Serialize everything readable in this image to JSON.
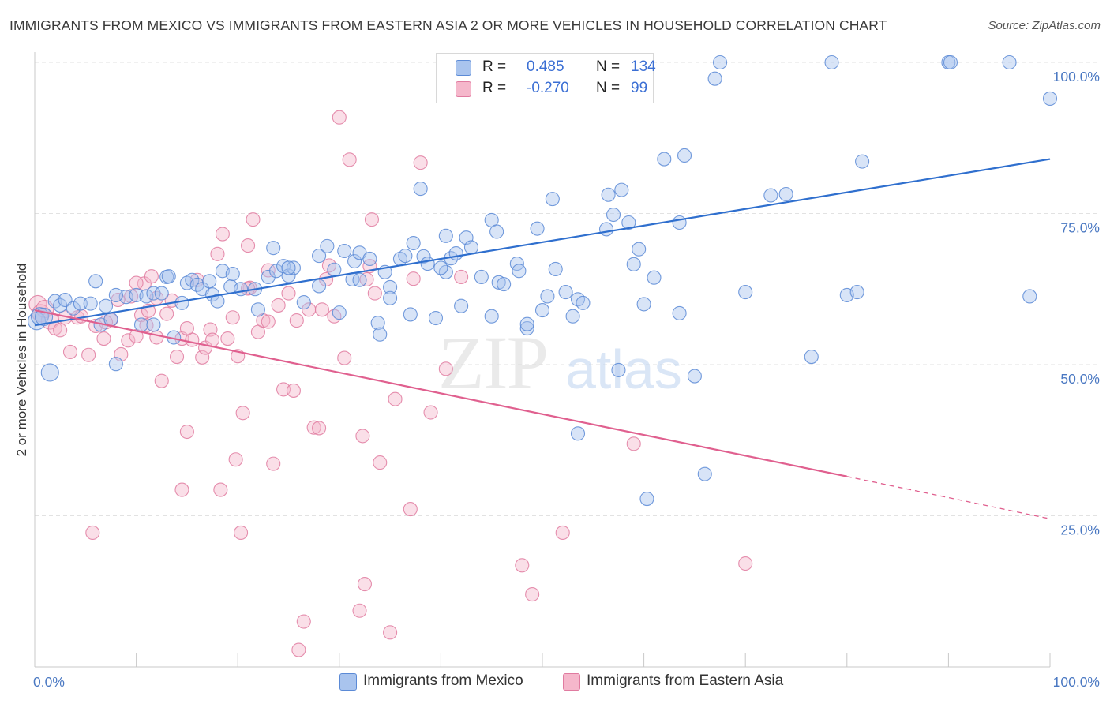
{
  "title": "IMMIGRANTS FROM MEXICO VS IMMIGRANTS FROM EASTERN ASIA 2 OR MORE VEHICLES IN HOUSEHOLD CORRELATION CHART",
  "source": "Source: ZipAtlas.com",
  "watermark": {
    "zip": "ZIP",
    "atlas": "atlas"
  },
  "legend": {
    "r_label": "R =",
    "n_label": "N =",
    "rows": [
      {
        "r": "0.485",
        "n": "134"
      },
      {
        "r": "-0.270",
        "n": "99"
      }
    ]
  },
  "colors": {
    "mexico_fill": "#a9c4ee",
    "mexico_stroke": "#5b8ad6",
    "mexico_line": "#2f6fce",
    "asia_fill": "#f5b7cb",
    "asia_stroke": "#e07ba0",
    "asia_line": "#e0608f",
    "tick": "#4a78c2",
    "grid": "#e2e2e2"
  },
  "chart_data": {
    "type": "scatter",
    "title": "IMMIGRANTS FROM MEXICO VS IMMIGRANTS FROM EASTERN ASIA 2 OR MORE VEHICLES IN HOUSEHOLD CORRELATION CHART",
    "xlabel": "",
    "ylabel": "2 or more Vehicles in Household",
    "xlim": [
      0,
      100
    ],
    "ylim": [
      0,
      100
    ],
    "x_tick_labels": [
      "0.0%",
      "100.0%"
    ],
    "y_tick_labels": [
      "25.0%",
      "50.0%",
      "75.0%",
      "100.0%"
    ],
    "y_ticks": [
      25,
      50,
      75,
      100
    ],
    "grid": true,
    "legend_position": "top-center",
    "series": [
      {
        "name": "Immigrants from Mexico",
        "r": 0.485,
        "n": 134,
        "trend": {
          "x0": 0,
          "y0": 56.5,
          "x1": 100,
          "y1": 84
        },
        "points": [
          [
            0.2,
            57.2
          ],
          [
            0.5,
            58
          ],
          [
            0.9,
            57.9
          ],
          [
            1.5,
            48.7
          ],
          [
            2,
            60.5
          ],
          [
            2.5,
            59.8
          ],
          [
            3,
            60.7
          ],
          [
            3.8,
            59.3
          ],
          [
            4.5,
            60.1
          ],
          [
            5.5,
            60.1
          ],
          [
            6,
            63.8
          ],
          [
            6.5,
            56.6
          ],
          [
            7,
            59.7
          ],
          [
            7.5,
            57.5
          ],
          [
            8,
            50.1
          ],
          [
            9,
            61.2
          ],
          [
            10,
            61.5
          ],
          [
            10.5,
            56.6
          ],
          [
            11,
            61.3
          ],
          [
            11.7,
            61.8
          ],
          [
            11.7,
            56.6
          ],
          [
            12.5,
            61.8
          ],
          [
            13,
            64.5
          ],
          [
            13.2,
            64.6
          ],
          [
            13.7,
            54.5
          ],
          [
            14.5,
            60.2
          ],
          [
            15,
            63.5
          ],
          [
            15.5,
            64
          ],
          [
            16,
            63.2
          ],
          [
            16.5,
            62.5
          ],
          [
            17.2,
            63.8
          ],
          [
            17.5,
            61.6
          ],
          [
            18.5,
            65.5
          ],
          [
            19.3,
            62.9
          ],
          [
            19.5,
            65
          ],
          [
            20.3,
            62.5
          ],
          [
            21.7,
            62.5
          ],
          [
            22,
            59.1
          ],
          [
            23,
            64.5
          ],
          [
            23.5,
            69.3
          ],
          [
            23.8,
            65.5
          ],
          [
            24.5,
            66.3
          ],
          [
            25,
            64.7
          ],
          [
            25.5,
            66
          ],
          [
            26.5,
            60.3
          ],
          [
            28,
            68
          ],
          [
            28.8,
            69.6
          ],
          [
            29.5,
            65.7
          ],
          [
            30,
            58.6
          ],
          [
            30.5,
            68.8
          ],
          [
            31.3,
            64.1
          ],
          [
            31.5,
            67.1
          ],
          [
            32,
            68.5
          ],
          [
            33,
            67.5
          ],
          [
            33.8,
            56.9
          ],
          [
            34,
            55
          ],
          [
            34.5,
            65.3
          ],
          [
            35,
            62.8
          ],
          [
            36,
            67.5
          ],
          [
            36.5,
            68
          ],
          [
            37,
            58.3
          ],
          [
            37.3,
            70.1
          ],
          [
            38,
            79.1
          ],
          [
            38.3,
            67.9
          ],
          [
            38.7,
            66.7
          ],
          [
            39.5,
            57.7
          ],
          [
            40.5,
            71.3
          ],
          [
            40.5,
            65.3
          ],
          [
            41,
            67.6
          ],
          [
            41.5,
            68.4
          ],
          [
            42,
            59.7
          ],
          [
            42.5,
            71
          ],
          [
            43,
            69.4
          ],
          [
            44,
            64.5
          ],
          [
            45,
            73.9
          ],
          [
            45.5,
            72
          ],
          [
            45.7,
            63.6
          ],
          [
            46.2,
            63.3
          ],
          [
            47.5,
            66.7
          ],
          [
            47.7,
            65.5
          ],
          [
            48.5,
            56
          ],
          [
            48.5,
            56.7
          ],
          [
            49.5,
            72.5
          ],
          [
            50.5,
            61.3
          ],
          [
            51,
            77.4
          ],
          [
            51.3,
            65.8
          ],
          [
            52.3,
            62
          ],
          [
            53,
            58
          ],
          [
            53.5,
            60.8
          ],
          [
            53.5,
            38.6
          ],
          [
            54,
            60.2
          ],
          [
            56.3,
            72.4
          ],
          [
            56.5,
            78.1
          ],
          [
            57,
            74.8
          ],
          [
            57.5,
            49.1
          ],
          [
            57.8,
            78.9
          ],
          [
            58.5,
            73.5
          ],
          [
            59,
            66.6
          ],
          [
            59.5,
            69.1
          ],
          [
            60.3,
            27.8
          ],
          [
            61,
            64.4
          ],
          [
            62,
            84
          ],
          [
            63.5,
            73.5
          ],
          [
            63.5,
            58.5
          ],
          [
            64,
            84.6
          ],
          [
            65,
            48.1
          ],
          [
            66,
            31.9
          ],
          [
            67,
            97.3
          ],
          [
            67.5,
            100
          ],
          [
            72.5,
            78
          ],
          [
            74,
            78.2
          ],
          [
            76.5,
            51.3
          ],
          [
            78.5,
            100
          ],
          [
            80,
            61.5
          ],
          [
            81,
            62
          ],
          [
            81.5,
            83.6
          ],
          [
            90,
            100
          ],
          [
            90.2,
            100
          ],
          [
            96,
            100
          ],
          [
            98,
            61.3
          ],
          [
            100,
            94
          ],
          [
            55,
            100
          ],
          [
            56,
            100
          ],
          [
            8,
            61.5
          ],
          [
            25,
            66
          ],
          [
            45,
            58
          ],
          [
            35,
            61
          ],
          [
            60,
            60
          ],
          [
            70,
            62
          ],
          [
            28,
            63
          ],
          [
            50,
            59
          ],
          [
            40,
            66
          ],
          [
            32,
            64
          ],
          [
            18,
            60.5
          ]
        ]
      },
      {
        "name": "Immigrants from Eastern Asia",
        "r": -0.27,
        "n": 99,
        "trend": {
          "x0": 0,
          "y0": 59,
          "x1": 80,
          "y1": 31.5,
          "dash_x1": 100,
          "dash_y1": 24.5
        },
        "points": [
          [
            0.3,
            60
          ],
          [
            0.6,
            58.5
          ],
          [
            1,
            59.2
          ],
          [
            1.5,
            57.3
          ],
          [
            2,
            56
          ],
          [
            2.5,
            55.7
          ],
          [
            3,
            57.8
          ],
          [
            3.5,
            52.1
          ],
          [
            4.2,
            57.8
          ],
          [
            4.6,
            58
          ],
          [
            5.3,
            51.6
          ],
          [
            5.7,
            22.2
          ],
          [
            6,
            56.4
          ],
          [
            6.8,
            54.3
          ],
          [
            7.5,
            57.4
          ],
          [
            8.2,
            60.7
          ],
          [
            8.5,
            51.7
          ],
          [
            9.2,
            54
          ],
          [
            9.5,
            61.3
          ],
          [
            10,
            54.7
          ],
          [
            10.5,
            58.2
          ],
          [
            10.8,
            63.4
          ],
          [
            11.2,
            58.9
          ],
          [
            11.5,
            64.6
          ],
          [
            12,
            54.5
          ],
          [
            12.5,
            47.3
          ],
          [
            13,
            58.4
          ],
          [
            13.5,
            60.6
          ],
          [
            14,
            51.3
          ],
          [
            14.5,
            29.3
          ],
          [
            14.5,
            54.3
          ],
          [
            15,
            38.9
          ],
          [
            15.5,
            54.1
          ],
          [
            16,
            64
          ],
          [
            16.5,
            51.2
          ],
          [
            16.8,
            52.8
          ],
          [
            17.3,
            55.8
          ],
          [
            17.5,
            54.1
          ],
          [
            18,
            68.3
          ],
          [
            18.3,
            29.3
          ],
          [
            18.5,
            71.6
          ],
          [
            19,
            54.3
          ],
          [
            19.5,
            57.8
          ],
          [
            19.8,
            34.3
          ],
          [
            20,
            51.4
          ],
          [
            20.3,
            22.2
          ],
          [
            20.5,
            42
          ],
          [
            21,
            69.7
          ],
          [
            21.2,
            62.7
          ],
          [
            21.5,
            74
          ],
          [
            22,
            55.4
          ],
          [
            22.5,
            57.3
          ],
          [
            23,
            65.6
          ],
          [
            23.5,
            33.6
          ],
          [
            24,
            59.8
          ],
          [
            24.5,
            45.9
          ],
          [
            25,
            61.8
          ],
          [
            25.5,
            45.7
          ],
          [
            25.8,
            57.3
          ],
          [
            26,
            2.8
          ],
          [
            26.5,
            7.5
          ],
          [
            27,
            59.1
          ],
          [
            27.5,
            39.6
          ],
          [
            28,
            39.5
          ],
          [
            28.3,
            59.1
          ],
          [
            28.7,
            64.1
          ],
          [
            29,
            66.4
          ],
          [
            29.5,
            58
          ],
          [
            30,
            90.9
          ],
          [
            30.5,
            51.1
          ],
          [
            31,
            83.9
          ],
          [
            32,
            9.3
          ],
          [
            32.3,
            38.2
          ],
          [
            32.5,
            13.7
          ],
          [
            32.7,
            64.1
          ],
          [
            33,
            66.3
          ],
          [
            33.2,
            74
          ],
          [
            33.5,
            61.8
          ],
          [
            34,
            33.8
          ],
          [
            35,
            5.7
          ],
          [
            35.5,
            44.3
          ],
          [
            37,
            26.1
          ],
          [
            37.3,
            64.2
          ],
          [
            38,
            83.4
          ],
          [
            39,
            42.1
          ],
          [
            40.5,
            49.3
          ],
          [
            42,
            64.5
          ],
          [
            48,
            16.8
          ],
          [
            49,
            12
          ],
          [
            52,
            22.2
          ],
          [
            59,
            36.9
          ],
          [
            70,
            17.1
          ],
          [
            10,
            63.5
          ],
          [
            12,
            61
          ],
          [
            21,
            62.6
          ],
          [
            15,
            56
          ],
          [
            11,
            56.5
          ],
          [
            23,
            57.1
          ],
          [
            7,
            57
          ]
        ]
      }
    ]
  },
  "bottom_legend": [
    {
      "label": "Immigrants from Mexico"
    },
    {
      "label": "Immigrants from Eastern Asia"
    }
  ]
}
